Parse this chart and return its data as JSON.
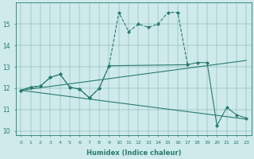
{
  "title": "",
  "xlabel": "Humidex (Indice chaleur)",
  "xlim": [
    -0.5,
    23.5
  ],
  "ylim": [
    9.8,
    16.0
  ],
  "yticks": [
    10,
    11,
    12,
    13,
    14,
    15
  ],
  "xticks": [
    0,
    1,
    2,
    3,
    4,
    5,
    6,
    7,
    8,
    9,
    10,
    11,
    12,
    13,
    14,
    15,
    16,
    17,
    18,
    19,
    20,
    21,
    22,
    23
  ],
  "bg_color": "#ceeaea",
  "line_color": "#2a7a70",
  "lines": [
    {
      "x": [
        0,
        1,
        2,
        3,
        4,
        5,
        6,
        7,
        8,
        9,
        10,
        11,
        12,
        13,
        14,
        15,
        16,
        17
      ],
      "y": [
        11.9,
        12.05,
        12.1,
        12.5,
        12.65,
        12.05,
        11.95,
        11.55,
        12.0,
        13.05,
        15.55,
        14.65,
        15.0,
        14.85,
        15.0,
        15.55,
        15.55,
        13.1
      ],
      "style": "--",
      "marker": "D",
      "markersize": 2
    },
    {
      "x": [
        0,
        1,
        2,
        3,
        4,
        5,
        6,
        7,
        8,
        9,
        17,
        18,
        19,
        20,
        21,
        22,
        23
      ],
      "y": [
        11.9,
        12.05,
        12.1,
        12.5,
        12.65,
        12.05,
        11.95,
        11.55,
        12.0,
        13.05,
        13.1,
        13.2,
        13.2,
        10.25,
        11.1,
        10.75,
        10.6
      ],
      "style": "-",
      "marker": "D",
      "markersize": 2
    },
    {
      "x": [
        0,
        23
      ],
      "y": [
        11.9,
        10.55
      ],
      "style": "-",
      "marker": null,
      "markersize": 0
    },
    {
      "x": [
        0,
        23
      ],
      "y": [
        11.9,
        13.3
      ],
      "style": "-",
      "marker": null,
      "markersize": 0
    }
  ]
}
